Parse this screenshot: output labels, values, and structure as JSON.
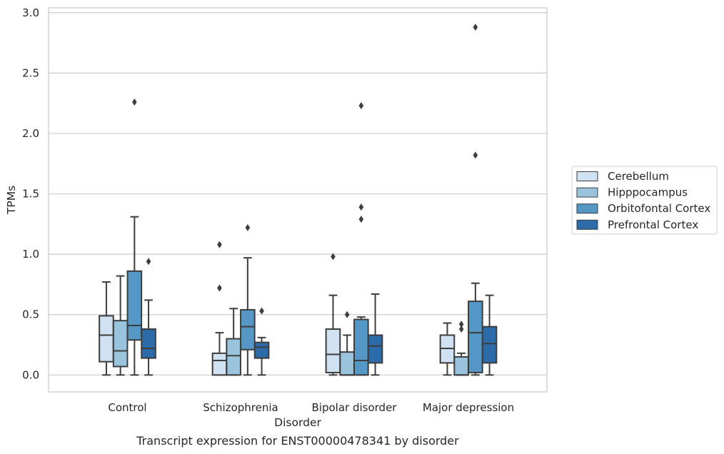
{
  "caption": "Transcript expression for ENST00000478341 by disorder",
  "chart_data": {
    "type": "box",
    "xlabel": "Disorder",
    "ylabel": "TPMs",
    "ylim": [
      -0.14,
      3.04
    ],
    "yticks": [
      "0.0",
      "0.5",
      "1.0",
      "1.5",
      "2.0",
      "2.5",
      "3.0"
    ],
    "grid": "horizontal",
    "legend_position": "right",
    "categories": [
      "Control",
      "Schizophrenia",
      "Bipolar disorder",
      "Major depression"
    ],
    "series": [
      {
        "name": "Cerebellum",
        "color": "#d0e1f2",
        "boxes": [
          {
            "whislo": 0.0,
            "q1": 0.11,
            "med": 0.33,
            "q3": 0.49,
            "whishi": 0.77,
            "fliers": []
          },
          {
            "whislo": 0.0,
            "q1": 0.0,
            "med": 0.12,
            "q3": 0.18,
            "whishi": 0.35,
            "fliers": [
              0.72,
              1.08
            ]
          },
          {
            "whislo": 0.0,
            "q1": 0.02,
            "med": 0.17,
            "q3": 0.38,
            "whishi": 0.66,
            "fliers": [
              0.98
            ]
          },
          {
            "whislo": 0.0,
            "q1": 0.1,
            "med": 0.22,
            "q3": 0.33,
            "whishi": 0.43,
            "fliers": []
          }
        ]
      },
      {
        "name": "Hipppocampus",
        "color": "#9ac3dd",
        "boxes": [
          {
            "whislo": 0.0,
            "q1": 0.07,
            "med": 0.2,
            "q3": 0.45,
            "whishi": 0.82,
            "fliers": []
          },
          {
            "whislo": 0.0,
            "q1": 0.0,
            "med": 0.16,
            "q3": 0.3,
            "whishi": 0.55,
            "fliers": []
          },
          {
            "whislo": 0.0,
            "q1": 0.0,
            "med": 0.0,
            "q3": 0.19,
            "whishi": 0.33,
            "fliers": [
              0.5
            ]
          },
          {
            "whislo": 0.0,
            "q1": 0.0,
            "med": 0.0,
            "q3": 0.15,
            "whishi": 0.18,
            "fliers": [
              0.38,
              0.42
            ]
          }
        ]
      },
      {
        "name": "Orbitofontal Cortex",
        "color": "#5598c6",
        "boxes": [
          {
            "whislo": 0.0,
            "q1": 0.29,
            "med": 0.41,
            "q3": 0.86,
            "whishi": 1.31,
            "fliers": [
              2.26
            ]
          },
          {
            "whislo": 0.0,
            "q1": 0.21,
            "med": 0.4,
            "q3": 0.54,
            "whishi": 0.97,
            "fliers": [
              1.22
            ]
          },
          {
            "whislo": 0.0,
            "q1": 0.0,
            "med": 0.12,
            "q3": 0.46,
            "whishi": 0.48,
            "fliers": [
              1.29,
              1.39,
              2.23
            ]
          },
          {
            "whislo": 0.0,
            "q1": 0.02,
            "med": 0.35,
            "q3": 0.61,
            "whishi": 0.76,
            "fliers": [
              1.82,
              2.88
            ]
          }
        ]
      },
      {
        "name": "Prefrontal Cortex",
        "color": "#2d6ba8",
        "boxes": [
          {
            "whislo": 0.0,
            "q1": 0.14,
            "med": 0.22,
            "q3": 0.38,
            "whishi": 0.62,
            "fliers": [
              0.94
            ]
          },
          {
            "whislo": 0.0,
            "q1": 0.14,
            "med": 0.23,
            "q3": 0.27,
            "whishi": 0.31,
            "fliers": [
              0.53
            ]
          },
          {
            "whislo": 0.0,
            "q1": 0.1,
            "med": 0.24,
            "q3": 0.33,
            "whishi": 0.67,
            "fliers": []
          },
          {
            "whislo": 0.0,
            "q1": 0.1,
            "med": 0.26,
            "q3": 0.4,
            "whishi": 0.66,
            "fliers": []
          }
        ]
      }
    ]
  }
}
